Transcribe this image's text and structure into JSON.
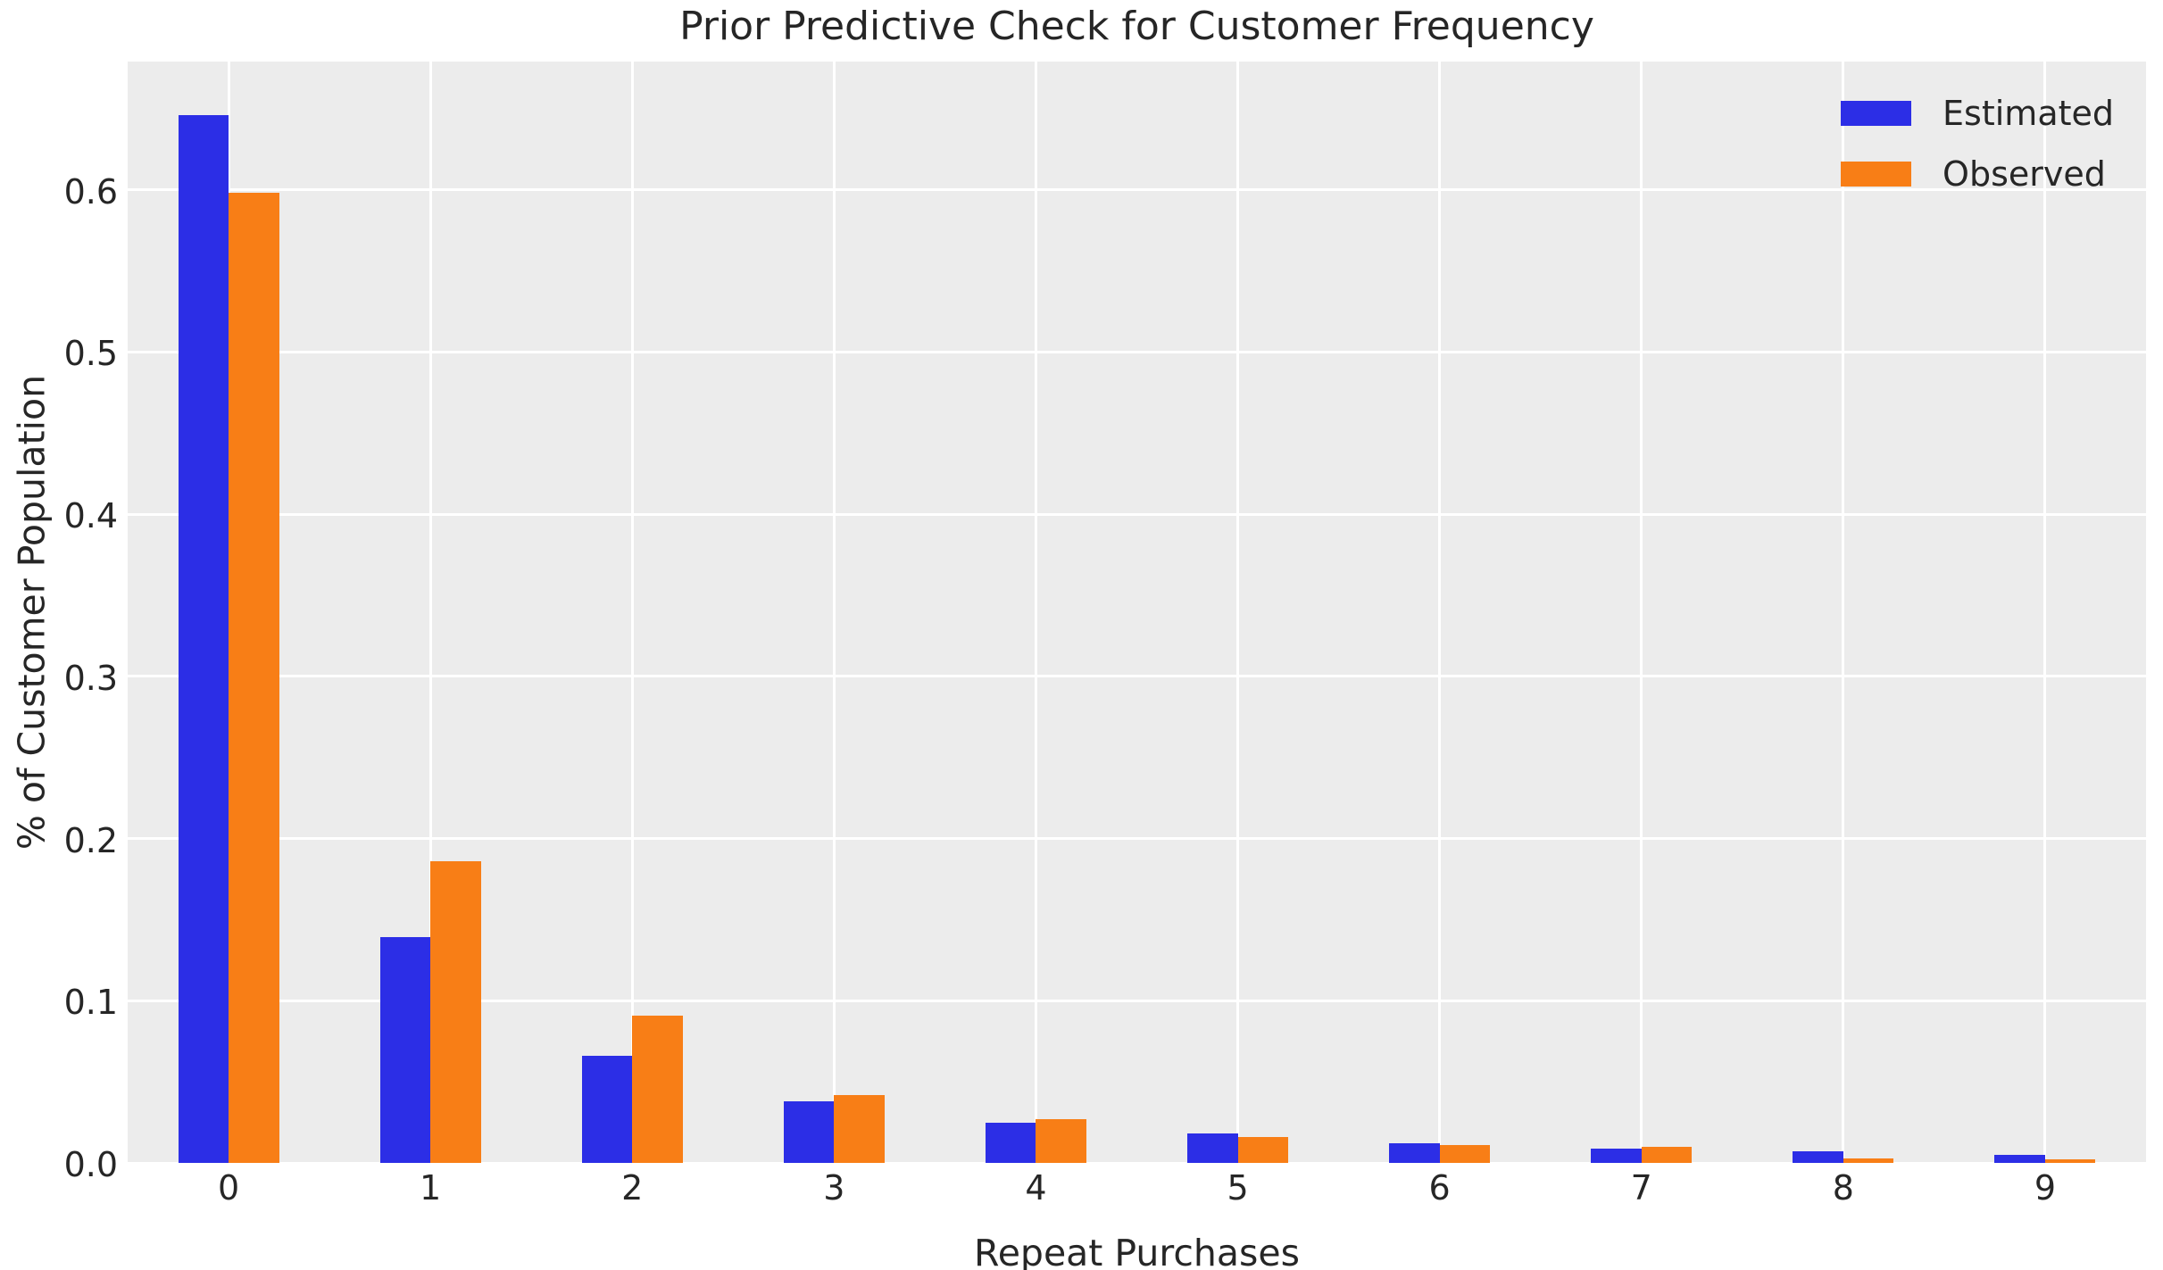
{
  "chart_data": {
    "type": "bar",
    "title": "Prior Predictive Check for Customer Frequency",
    "xlabel": "Repeat Purchases",
    "ylabel": "% of Customer Population",
    "categories": [
      "0",
      "1",
      "2",
      "3",
      "4",
      "5",
      "6",
      "7",
      "8",
      "9"
    ],
    "series": [
      {
        "name": "Estimated",
        "color": "#2c2ee6",
        "values": [
          0.646,
          0.139,
          0.066,
          0.038,
          0.025,
          0.018,
          0.012,
          0.009,
          0.007,
          0.005
        ]
      },
      {
        "name": "Observed",
        "color": "#f87e16",
        "values": [
          0.598,
          0.186,
          0.091,
          0.042,
          0.027,
          0.016,
          0.011,
          0.01,
          0.003,
          0.002
        ]
      }
    ],
    "ylim": [
      0,
      0.679
    ],
    "yticks": [
      0.0,
      0.1,
      0.2,
      0.3,
      0.4,
      0.5,
      0.6
    ],
    "ytick_labels": [
      "0.0",
      "0.1",
      "0.2",
      "0.3",
      "0.4",
      "0.5",
      "0.6"
    ],
    "grid": true,
    "legend_position": "upper right",
    "bar_width_fraction": 0.25,
    "plot_background": "#ececec",
    "grid_color": "#ffffff",
    "text_color": "#262626",
    "figure_background": "#ffffff"
  }
}
